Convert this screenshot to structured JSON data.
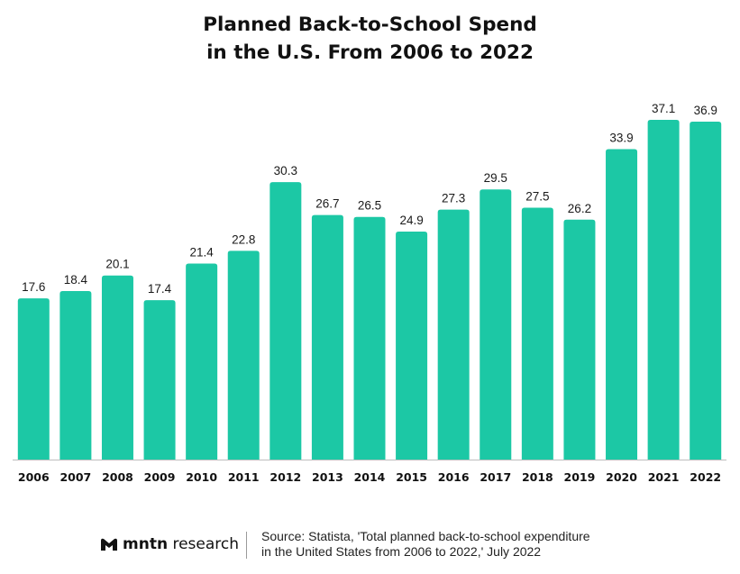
{
  "chart_data": {
    "type": "bar",
    "title": [
      "Planned Back-to-School Spend",
      "in the U.S. From 2006 to 2022"
    ],
    "categories": [
      "2006",
      "2007",
      "2008",
      "2009",
      "2010",
      "2011",
      "2012",
      "2013",
      "2014",
      "2015",
      "2016",
      "2017",
      "2018",
      "2019",
      "2020",
      "2021",
      "2022"
    ],
    "values": [
      17.6,
      18.4,
      20.1,
      17.4,
      21.4,
      22.8,
      30.3,
      26.7,
      26.5,
      24.9,
      27.3,
      29.5,
      27.5,
      26.2,
      33.9,
      37.1,
      36.9
    ],
    "value_labels": [
      "17.6",
      "18.4",
      "20.1",
      "17.4",
      "21.4",
      "22.8",
      "30.3",
      "26.7",
      "26.5",
      "24.9",
      "27.3",
      "29.5",
      "27.5",
      "26.2",
      "33.9",
      "37.1",
      "36.9"
    ],
    "xlabel": "",
    "ylabel": "",
    "ylim": [
      0,
      37.1
    ],
    "grid": false,
    "legend": "none",
    "bar_color": "#1cc8a5"
  },
  "footer": {
    "brand_bold": "mntn",
    "brand_rest": " research",
    "brand_logo_icon": "mntn-logo-icon",
    "source_lines": [
      "Source: Statista, 'Total planned back-to-school expenditure",
      "in the United States from 2006 to 2022,' July 2022"
    ]
  }
}
